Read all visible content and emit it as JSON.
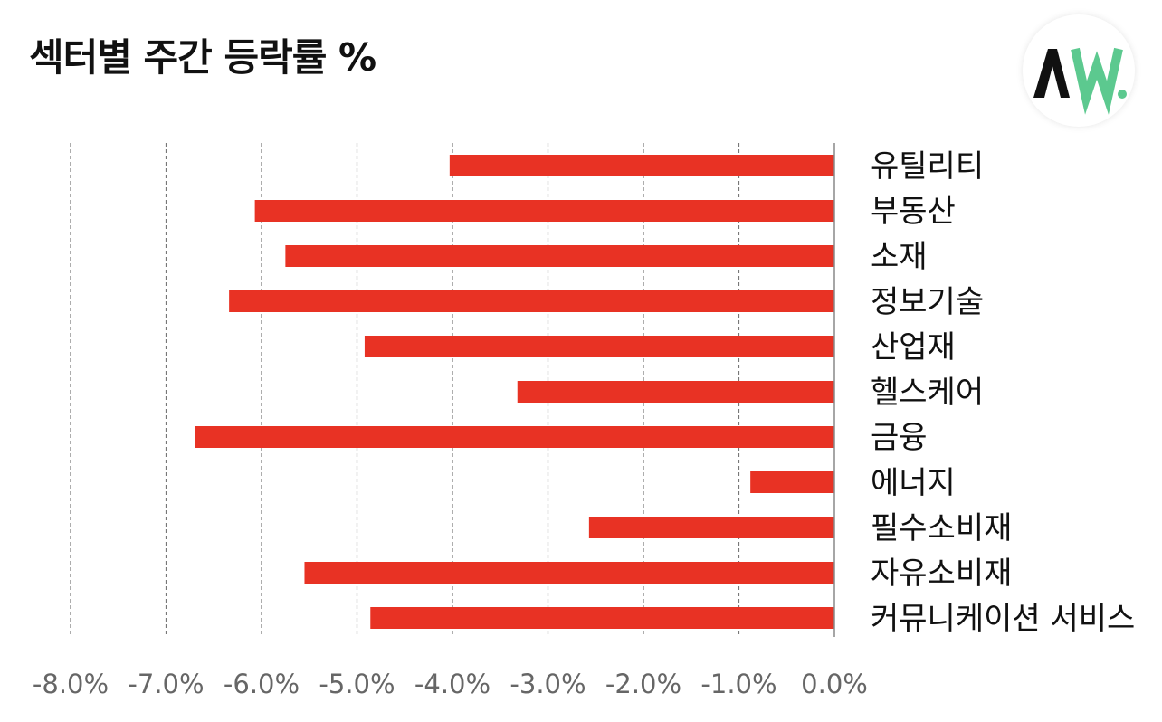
{
  "title": "섹터별 주간 등락률 %",
  "logo": {
    "icon": "aw-logo-icon",
    "text": "AW.",
    "colors": {
      "a": "#111111",
      "w": "#5cc98f"
    }
  },
  "colors": {
    "bar": "#e83224",
    "grid": "#777777",
    "axis": "#888888",
    "tick_text": "#666666",
    "label_text": "#111111"
  },
  "chart_data": {
    "type": "bar",
    "orientation": "horizontal",
    "title": "섹터별 주간 등락률 %",
    "categories": [
      "유틸리티",
      "부동산",
      "소재",
      "정보기술",
      "산업재",
      "헬스케어",
      "금융",
      "에너지",
      "필수소비재",
      "자유소비재",
      "커뮤니케이션 서비스"
    ],
    "values": [
      -4.03,
      -6.07,
      -5.75,
      -6.34,
      -4.92,
      -3.32,
      -6.7,
      -0.88,
      -2.57,
      -5.55,
      -4.86
    ],
    "xlim": [
      -8,
      0
    ],
    "xticks": [
      -8,
      -7,
      -6,
      -5,
      -4,
      -3,
      -2,
      -1,
      0
    ],
    "xtick_labels": [
      "-8.0%",
      "-7.0%",
      "-6.0%",
      "-5.0%",
      "-4.0%",
      "-3.0%",
      "-2.0%",
      "-1.0%",
      "0.0%"
    ],
    "grid": "vertical-dashed",
    "category_labels_side": "right",
    "legend": "none"
  }
}
